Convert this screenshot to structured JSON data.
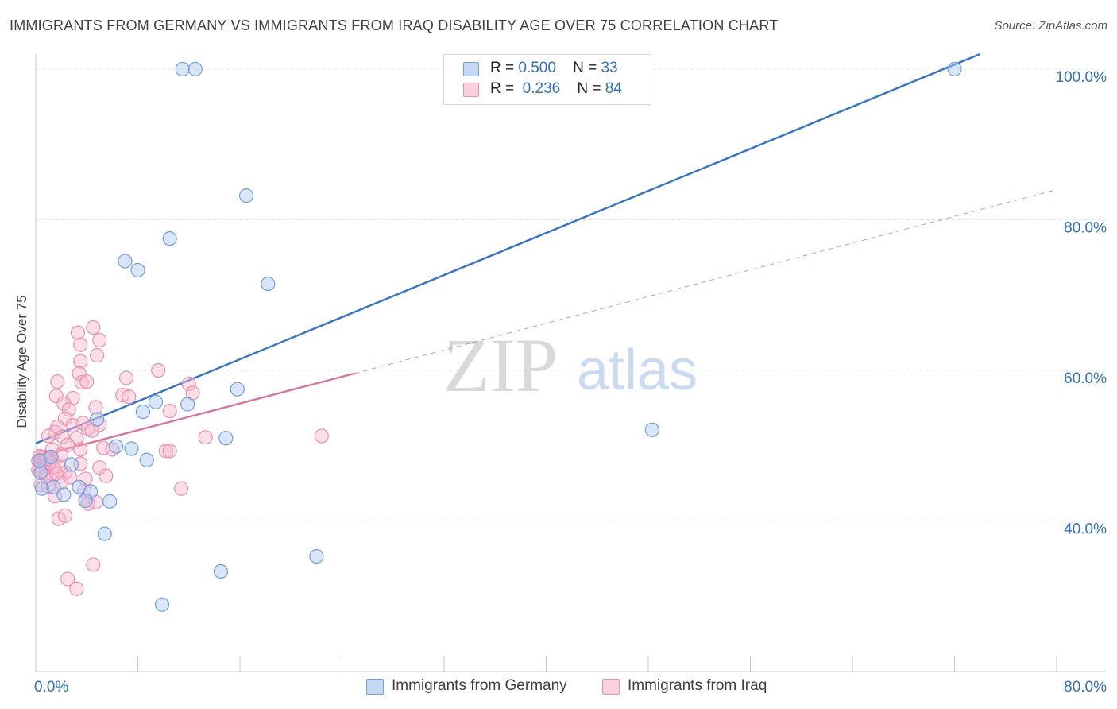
{
  "header": {
    "title": "IMMIGRANTS FROM GERMANY VS IMMIGRANTS FROM IRAQ DISABILITY AGE OVER 75 CORRELATION CHART",
    "source": "Source: ZipAtlas.com"
  },
  "watermark": {
    "zip": "ZIP",
    "atlas": "atlas"
  },
  "legend": {
    "germany": {
      "r_label": "R =",
      "r_value": "0.500",
      "n_label": "N =",
      "n_value": "33"
    },
    "iraq": {
      "r_label": "R =",
      "r_value": "0.236",
      "n_label": "N =",
      "n_value": "84"
    }
  },
  "colors": {
    "germany_fill": "#aac8f0",
    "germany_stroke": "#6f9fe0",
    "germany_line": "#2f74d0",
    "iraq_fill": "#f7b8cc",
    "iraq_stroke": "#ec8fae",
    "iraq_line": "#e0709a",
    "axis_text": "#2f6fd0",
    "grid": "#e3e3e3"
  },
  "chart_data": {
    "type": "scatter",
    "title": "IMMIGRANTS FROM GERMANY VS IMMIGRANTS FROM IRAQ DISABILITY AGE OVER 75 CORRELATION CHART",
    "xlabel": "",
    "ylabel": "Disability Age Over 75",
    "xlim": [
      0,
      80
    ],
    "ylim": [
      20,
      102
    ],
    "x_tick_labels": [
      "0.0%",
      "80.0%"
    ],
    "y_ticks": [
      40,
      60,
      80,
      100
    ],
    "y_tick_labels": [
      "40.0%",
      "60.0%",
      "80.0%",
      "100.0%"
    ],
    "grid": true,
    "series": [
      {
        "name": "Immigrants from Germany",
        "points": [
          [
            11.5,
            100.0
          ],
          [
            12.5,
            100.0
          ],
          [
            72.0,
            100.0
          ],
          [
            16.5,
            83.2
          ],
          [
            10.5,
            77.5
          ],
          [
            7.0,
            74.5
          ],
          [
            8.0,
            73.3
          ],
          [
            18.2,
            71.5
          ],
          [
            15.8,
            57.5
          ],
          [
            11.9,
            55.5
          ],
          [
            9.4,
            55.8
          ],
          [
            8.4,
            54.5
          ],
          [
            4.8,
            53.5
          ],
          [
            14.9,
            51.0
          ],
          [
            48.3,
            52.1
          ],
          [
            6.3,
            49.9
          ],
          [
            7.5,
            49.6
          ],
          [
            8.7,
            48.1
          ],
          [
            2.8,
            47.5
          ],
          [
            0.4,
            46.4
          ],
          [
            0.5,
            44.3
          ],
          [
            1.4,
            44.5
          ],
          [
            2.2,
            43.5
          ],
          [
            3.4,
            44.5
          ],
          [
            4.3,
            43.9
          ],
          [
            3.9,
            42.7
          ],
          [
            5.8,
            42.6
          ],
          [
            5.4,
            38.3
          ],
          [
            14.5,
            33.3
          ],
          [
            22.0,
            35.3
          ],
          [
            9.9,
            28.9
          ],
          [
            0.3,
            48.0
          ],
          [
            1.2,
            48.5
          ]
        ]
      },
      {
        "name": "Immigrants from Iraq",
        "points": [
          [
            3.3,
            65.0
          ],
          [
            4.5,
            65.7
          ],
          [
            5.0,
            64.0
          ],
          [
            3.5,
            63.4
          ],
          [
            4.8,
            62.0
          ],
          [
            3.5,
            61.2
          ],
          [
            3.4,
            59.6
          ],
          [
            7.1,
            59.0
          ],
          [
            9.6,
            60.0
          ],
          [
            1.7,
            58.5
          ],
          [
            3.6,
            58.4
          ],
          [
            4.0,
            58.5
          ],
          [
            12.0,
            58.2
          ],
          [
            12.3,
            57.0
          ],
          [
            6.8,
            56.7
          ],
          [
            7.3,
            56.5
          ],
          [
            1.6,
            56.6
          ],
          [
            2.9,
            56.3
          ],
          [
            2.2,
            55.6
          ],
          [
            4.7,
            55.1
          ],
          [
            2.6,
            54.8
          ],
          [
            10.5,
            54.6
          ],
          [
            2.3,
            53.6
          ],
          [
            3.7,
            53.0
          ],
          [
            5.0,
            52.8
          ],
          [
            2.9,
            52.7
          ],
          [
            4.1,
            52.3
          ],
          [
            1.7,
            52.5
          ],
          [
            1.5,
            51.8
          ],
          [
            4.4,
            52.0
          ],
          [
            1.0,
            51.3
          ],
          [
            3.2,
            51.0
          ],
          [
            2.1,
            51.2
          ],
          [
            13.3,
            51.1
          ],
          [
            22.4,
            51.3
          ],
          [
            2.5,
            50.1
          ],
          [
            3.5,
            49.5
          ],
          [
            5.3,
            49.7
          ],
          [
            1.3,
            49.5
          ],
          [
            6.0,
            49.5
          ],
          [
            10.2,
            49.3
          ],
          [
            10.5,
            49.3
          ],
          [
            0.3,
            48.6
          ],
          [
            0.5,
            48.5
          ],
          [
            0.7,
            48.5
          ],
          [
            1.0,
            48.4
          ],
          [
            0.2,
            48.0
          ],
          [
            0.4,
            47.9
          ],
          [
            0.6,
            47.7
          ],
          [
            0.8,
            47.9
          ],
          [
            1.1,
            47.7
          ],
          [
            1.4,
            47.9
          ],
          [
            0.3,
            47.3
          ],
          [
            0.6,
            47.2
          ],
          [
            1.0,
            47.4
          ],
          [
            1.4,
            47.1
          ],
          [
            0.2,
            46.8
          ],
          [
            0.5,
            46.7
          ],
          [
            1.8,
            47.3
          ],
          [
            3.5,
            47.6
          ],
          [
            5.0,
            47.1
          ],
          [
            2.3,
            46.4
          ],
          [
            0.8,
            46.0
          ],
          [
            2.7,
            45.8
          ],
          [
            3.9,
            45.6
          ],
          [
            5.5,
            46.0
          ],
          [
            0.4,
            44.8
          ],
          [
            1.0,
            44.6
          ],
          [
            1.5,
            43.3
          ],
          [
            3.8,
            44.0
          ],
          [
            1.2,
            45.5
          ],
          [
            2.0,
            45.1
          ],
          [
            3.9,
            42.7
          ],
          [
            4.7,
            42.5
          ],
          [
            4.1,
            42.3
          ],
          [
            11.4,
            44.3
          ],
          [
            1.8,
            40.3
          ],
          [
            2.3,
            40.7
          ],
          [
            4.5,
            34.2
          ],
          [
            2.5,
            32.3
          ],
          [
            3.2,
            31.0
          ],
          [
            2.0,
            48.8
          ],
          [
            0.9,
            48.2
          ],
          [
            1.6,
            46.3
          ]
        ]
      }
    ],
    "trendlines": [
      {
        "series": "Immigrants from Germany",
        "from": [
          0,
          50.3
        ],
        "to": [
          74.0,
          102
        ],
        "style": "solid"
      },
      {
        "series": "Immigrants from Iraq",
        "from": [
          0,
          48.5
        ],
        "to": [
          25.0,
          59.6
        ],
        "style": "solid"
      },
      {
        "series": "Immigrants from Iraq",
        "from": [
          25.0,
          59.6
        ],
        "to": [
          80.0,
          84.0
        ],
        "style": "dashed"
      }
    ]
  }
}
